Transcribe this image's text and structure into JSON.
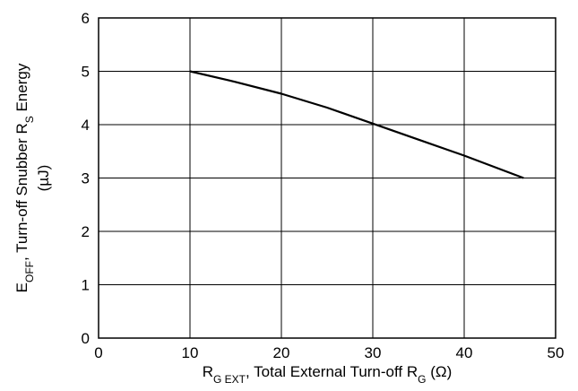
{
  "chart_data": {
    "type": "line",
    "title": "",
    "xlabel": {
      "parts": [
        {
          "text": "R",
          "sub": false
        },
        {
          "text": "G EXT",
          "sub": true
        },
        {
          "text": ", Total External Turn-off R",
          "sub": false
        },
        {
          "text": "G",
          "sub": true
        },
        {
          "text": " (Ω)",
          "sub": false
        }
      ]
    },
    "ylabel": {
      "parts": [
        {
          "text": "E",
          "sub": false
        },
        {
          "text": "OFF",
          "sub": true
        },
        {
          "text": ", Turn-off Snubber R",
          "sub": false
        },
        {
          "text": "S",
          "sub": true
        },
        {
          "text": " Energy",
          "sub": false
        }
      ],
      "line2": "(µJ)"
    },
    "xlim": [
      0,
      50
    ],
    "ylim": [
      0,
      6
    ],
    "x_ticks": [
      0,
      10,
      20,
      30,
      40,
      50
    ],
    "y_ticks": [
      0,
      1,
      2,
      3,
      4,
      5,
      6
    ],
    "grid": true,
    "series": [
      {
        "x": [
          10,
          15,
          20,
          25,
          30,
          35,
          40,
          46.5
        ],
        "y": [
          5.0,
          4.8,
          4.58,
          4.32,
          4.02,
          3.72,
          3.42,
          3.0
        ],
        "color": "#000000"
      }
    ]
  }
}
